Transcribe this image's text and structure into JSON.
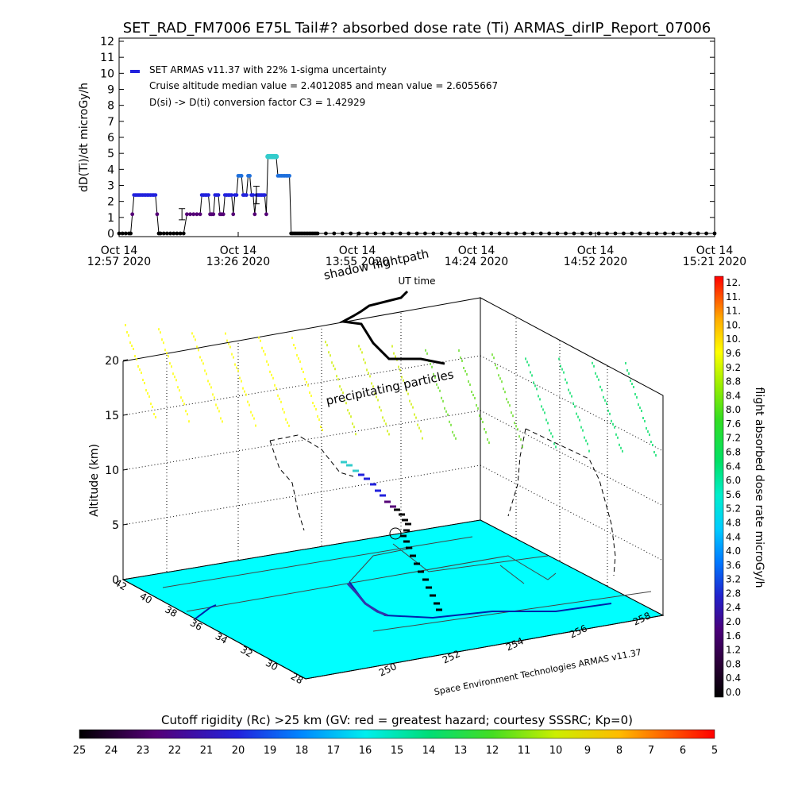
{
  "title": "SET_RAD_FM7006   E75L Tail#? absorbed dose rate (Ti) ARMAS_dirIP_Report_07006",
  "colors": {
    "background": "#ffffff",
    "ground": "#00ffff",
    "line": "#000000",
    "marker_blue": "#2222dd",
    "marker_cyan": "#33cccc",
    "marker_purple": "#550077"
  },
  "chart_data": [
    {
      "type": "line",
      "name": "dose-rate-timeseries",
      "ylabel": "dD(Ti)/dt microGy/h",
      "ylim": [
        0,
        12
      ],
      "yticks": [
        0,
        1,
        2,
        3,
        4,
        5,
        6,
        7,
        8,
        9,
        10,
        11,
        12
      ],
      "xlim_minutes_label": "12:57 2020 to 15:21 2020",
      "xticks": [
        {
          "top": "Oct 14",
          "bottom": "12:57 2020"
        },
        {
          "top": "Oct 14",
          "bottom": "13:26 2020"
        },
        {
          "top": "Oct 14",
          "bottom": "13:55 2020"
        },
        {
          "top": "Oct 14",
          "bottom": "14:24 2020"
        },
        {
          "top": "Oct 14",
          "bottom": "14:52 2020"
        },
        {
          "top": "Oct 14",
          "bottom": "15:21 2020"
        }
      ],
      "legend": {
        "position": "top-left",
        "series_label": "SET ARMAS v11.37 with 22% 1-sigma uncertainty",
        "notes": [
          "Cruise altitude median value = 2.4012085 and mean value = 2.6055667",
          "D(si) -> D(ti) conversion factor C3 = 1.42929"
        ]
      },
      "series": [
        {
          "name": "SET ARMAS v11.37",
          "x_minutes": [
            0,
            2,
            4,
            6,
            7,
            8,
            9,
            10,
            11,
            12,
            13,
            14,
            15,
            16,
            17,
            18,
            19,
            20,
            21,
            22,
            23,
            24,
            25,
            27,
            29,
            31,
            33,
            35,
            37,
            39,
            41,
            43,
            45,
            47,
            49,
            50,
            51,
            52,
            53,
            54,
            55,
            56,
            57,
            58,
            59,
            60,
            61,
            62,
            63,
            64,
            65,
            66,
            67,
            68,
            69,
            70,
            71,
            72,
            73,
            74,
            75,
            76,
            77,
            78,
            79,
            80,
            81,
            82,
            83,
            84,
            85,
            86,
            87,
            88,
            89,
            90,
            91,
            92,
            93,
            94,
            95,
            96,
            97,
            98,
            99,
            100,
            101,
            102,
            103,
            104,
            105,
            106,
            107,
            108,
            109,
            110,
            111,
            112,
            113,
            114,
            115,
            116,
            117,
            118,
            119,
            120,
            125,
            130,
            135,
            140,
            145,
            150,
            155,
            160,
            165,
            170,
            175,
            180,
            185,
            190,
            195,
            200,
            205,
            210,
            215,
            220,
            225,
            230,
            235,
            240,
            245,
            250,
            255,
            260,
            265,
            270,
            275,
            280,
            285,
            290,
            295,
            300,
            305,
            310,
            315,
            320,
            325,
            330,
            335,
            340,
            345,
            350,
            355,
            360
          ],
          "y": [
            0,
            0,
            0,
            0,
            0,
            1.2,
            2.4,
            2.4,
            2.4,
            2.4,
            2.4,
            2.4,
            2.4,
            2.4,
            2.4,
            2.4,
            2.4,
            2.4,
            2.4,
            2.4,
            1.2,
            0,
            0,
            0,
            0,
            0,
            0,
            0,
            0,
            0,
            1.2,
            1.2,
            1.2,
            1.2,
            1.2,
            2.4,
            2.4,
            2.4,
            2.4,
            2.4,
            1.2,
            1.2,
            1.2,
            2.4,
            2.4,
            2.4,
            1.2,
            1.2,
            1.2,
            2.4,
            2.4,
            2.4,
            2.4,
            2.4,
            1.2,
            2.4,
            2.4,
            3.6,
            3.6,
            3.6,
            2.4,
            2.4,
            2.4,
            3.6,
            3.6,
            2.4,
            2.4,
            1.2,
            2.4,
            2.4,
            2.4,
            2.4,
            2.4,
            2.4,
            1.2,
            4.8,
            4.8,
            4.8,
            4.8,
            4.8,
            4.8,
            3.6,
            3.6,
            3.6,
            3.6,
            3.6,
            3.6,
            3.6,
            3.6,
            0,
            0,
            0,
            0,
            0,
            0,
            0,
            0,
            0,
            0,
            0,
            0,
            0,
            0,
            0,
            0,
            0,
            0,
            0,
            0,
            0,
            0,
            0,
            0,
            0,
            0,
            0,
            0,
            0,
            0,
            0,
            0,
            0,
            0,
            0,
            0,
            0,
            0,
            0,
            0,
            0,
            0,
            0,
            0,
            0,
            0,
            0,
            0,
            0,
            0,
            0,
            0,
            0,
            0,
            0,
            0,
            0,
            0,
            0,
            0,
            0,
            0,
            0,
            0,
            0
          ]
        }
      ],
      "error_bars": [
        {
          "x_minutes": 38,
          "y": 1.2,
          "low": 0.85,
          "high": 1.55
        },
        {
          "x_minutes": 83,
          "y": 2.4,
          "low": 1.85,
          "high": 2.95
        }
      ]
    },
    {
      "type": "scatter",
      "name": "3d-flightpath",
      "zlabel": "Altitude (km)",
      "zticks": [
        0,
        5,
        10,
        15,
        20
      ],
      "lat_ticks": [
        28,
        30,
        32,
        34,
        36,
        38,
        40,
        42
      ],
      "lon_ticks": [
        250,
        252,
        254,
        256,
        258
      ],
      "annotations": [
        "shadow flightpath",
        "UT time",
        "precipitating particles"
      ],
      "credit": "Space Environment Technologies ARMAS v11.37"
    }
  ],
  "rad_colorbar": {
    "label": "flight absorbed dose rate microGy/h",
    "ticks": [
      "12.",
      "11.",
      "11.",
      "10.",
      "10.",
      "9.6",
      "9.2",
      "8.8",
      "8.4",
      "8.0",
      "7.6",
      "7.2",
      "6.8",
      "6.4",
      "6.0",
      "5.6",
      "5.2",
      "4.8",
      "4.4",
      "4.0",
      "3.6",
      "3.2",
      "2.8",
      "2.4",
      "2.0",
      "1.6",
      "1.2",
      "0.8",
      "0.4",
      "0.0"
    ]
  },
  "rc_colorbar": {
    "label": "Cutoff rigidity (Rc) >25 km (GV: red = greatest hazard; courtesy SSSRC; Kp=0)",
    "ticks": [
      "25",
      "24",
      "23",
      "22",
      "21",
      "20",
      "19",
      "18",
      "17",
      "16",
      "15",
      "14",
      "13",
      "12",
      "11",
      "10",
      "9",
      "8",
      "7",
      "6",
      "5"
    ]
  }
}
